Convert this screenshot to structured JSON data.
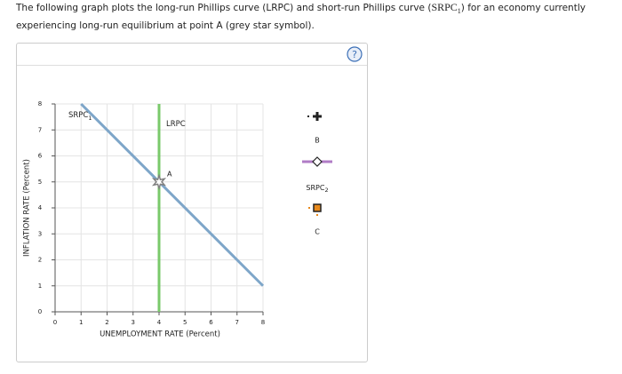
{
  "instructions": {
    "text1": "The following graph plots the long-run Phillips curve (LRPC) and short-run Phillips curve (",
    "sub_name": "SRPC",
    "sub": "1",
    "text2": ") for an economy currently experiencing long-run equilibrium at point A (grey star symbol)."
  },
  "chart_data": {
    "type": "line",
    "xlabel": "UNEMPLOYMENT RATE (Percent)",
    "ylabel": "INFLATION RATE (Percent)",
    "xlim": [
      0,
      8
    ],
    "ylim": [
      0,
      8
    ],
    "xticks": [
      0,
      1,
      2,
      3,
      4,
      5,
      6,
      7,
      8
    ],
    "yticks": [
      0,
      1,
      2,
      3,
      4,
      5,
      6,
      7,
      8
    ],
    "grid": true,
    "series": [
      {
        "name": "SRPC",
        "subscript": "1",
        "color": "#7ea6c9",
        "x": [
          1,
          8
        ],
        "values": [
          8,
          1
        ]
      },
      {
        "name": "LRPC",
        "color": "#7ac96b",
        "x": [
          4,
          4
        ],
        "values": [
          0,
          8
        ]
      }
    ],
    "points": [
      {
        "label": "A",
        "x": 4,
        "y": 5,
        "color": "#808080"
      }
    ]
  },
  "tools": [
    {
      "label": "B"
    },
    {
      "label": "SRPC",
      "subscript": "2"
    },
    {
      "label": "C"
    }
  ]
}
